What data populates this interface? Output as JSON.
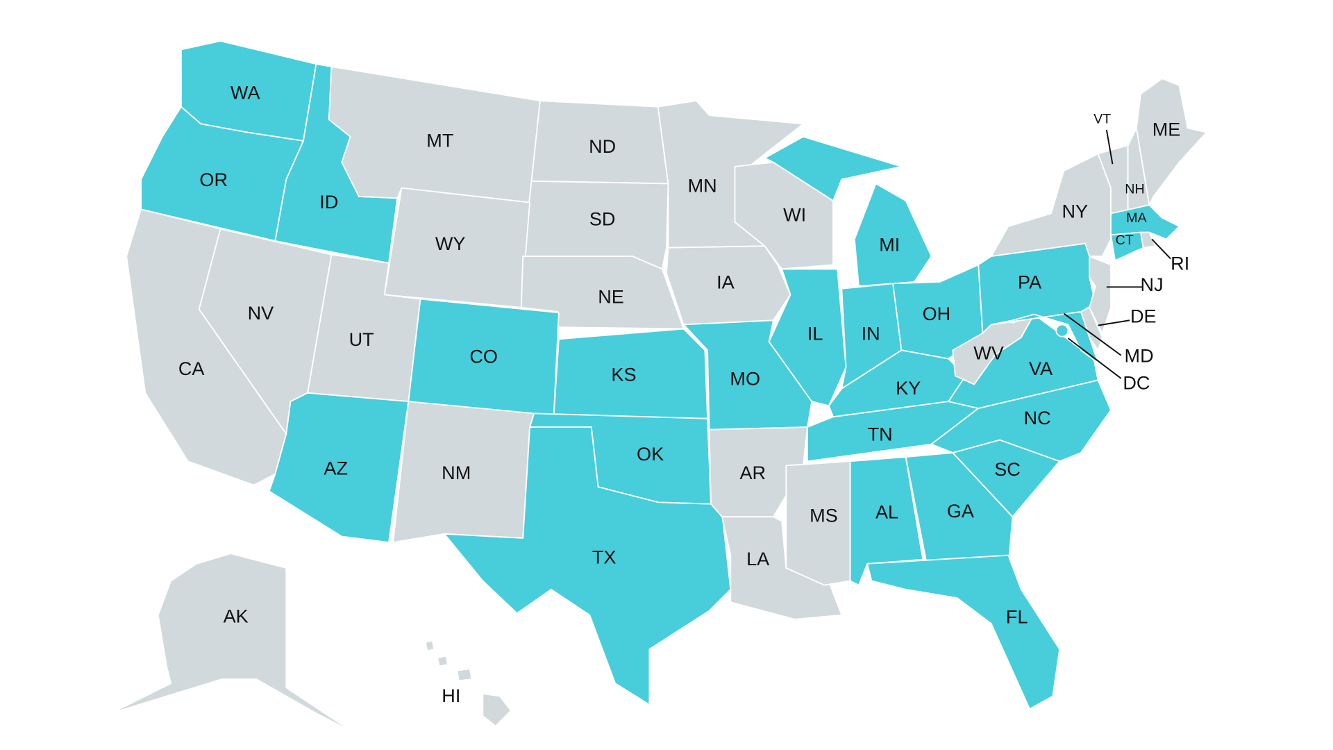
{
  "colors": {
    "highlighted": "#48CDDB",
    "default": "#D1D9DC",
    "border": "#FFFFFF",
    "label": "#111111"
  },
  "states": [
    {
      "code": "WA",
      "highlighted": true
    },
    {
      "code": "OR",
      "highlighted": true
    },
    {
      "code": "ID",
      "highlighted": true
    },
    {
      "code": "MT",
      "highlighted": false
    },
    {
      "code": "ND",
      "highlighted": false
    },
    {
      "code": "SD",
      "highlighted": false
    },
    {
      "code": "WY",
      "highlighted": false
    },
    {
      "code": "NE",
      "highlighted": false
    },
    {
      "code": "CA",
      "highlighted": false
    },
    {
      "code": "NV",
      "highlighted": false
    },
    {
      "code": "UT",
      "highlighted": false
    },
    {
      "code": "CO",
      "highlighted": true
    },
    {
      "code": "AZ",
      "highlighted": true
    },
    {
      "code": "NM",
      "highlighted": false
    },
    {
      "code": "KS",
      "highlighted": true
    },
    {
      "code": "OK",
      "highlighted": true
    },
    {
      "code": "TX",
      "highlighted": true
    },
    {
      "code": "MN",
      "highlighted": false
    },
    {
      "code": "IA",
      "highlighted": false
    },
    {
      "code": "MO",
      "highlighted": true
    },
    {
      "code": "WI",
      "highlighted": false
    },
    {
      "code": "IL",
      "highlighted": true
    },
    {
      "code": "MI",
      "highlighted": true
    },
    {
      "code": "IN",
      "highlighted": true
    },
    {
      "code": "OH",
      "highlighted": true
    },
    {
      "code": "KY",
      "highlighted": true
    },
    {
      "code": "TN",
      "highlighted": true
    },
    {
      "code": "AR",
      "highlighted": false
    },
    {
      "code": "LA",
      "highlighted": false
    },
    {
      "code": "MS",
      "highlighted": false
    },
    {
      "code": "AL",
      "highlighted": true
    },
    {
      "code": "GA",
      "highlighted": true
    },
    {
      "code": "FL",
      "highlighted": true
    },
    {
      "code": "SC",
      "highlighted": true
    },
    {
      "code": "NC",
      "highlighted": true
    },
    {
      "code": "VA",
      "highlighted": true
    },
    {
      "code": "WV",
      "highlighted": false
    },
    {
      "code": "PA",
      "highlighted": true
    },
    {
      "code": "MD",
      "highlighted": true
    },
    {
      "code": "DE",
      "highlighted": false
    },
    {
      "code": "NJ",
      "highlighted": false
    },
    {
      "code": "NY",
      "highlighted": false
    },
    {
      "code": "VT",
      "highlighted": false
    },
    {
      "code": "NH",
      "highlighted": false
    },
    {
      "code": "ME",
      "highlighted": false
    },
    {
      "code": "MA",
      "highlighted": true
    },
    {
      "code": "CT",
      "highlighted": true
    },
    {
      "code": "RI",
      "highlighted": false
    },
    {
      "code": "AK",
      "highlighted": false
    },
    {
      "code": "HI",
      "highlighted": false
    },
    {
      "code": "DC",
      "highlighted": true
    }
  ]
}
